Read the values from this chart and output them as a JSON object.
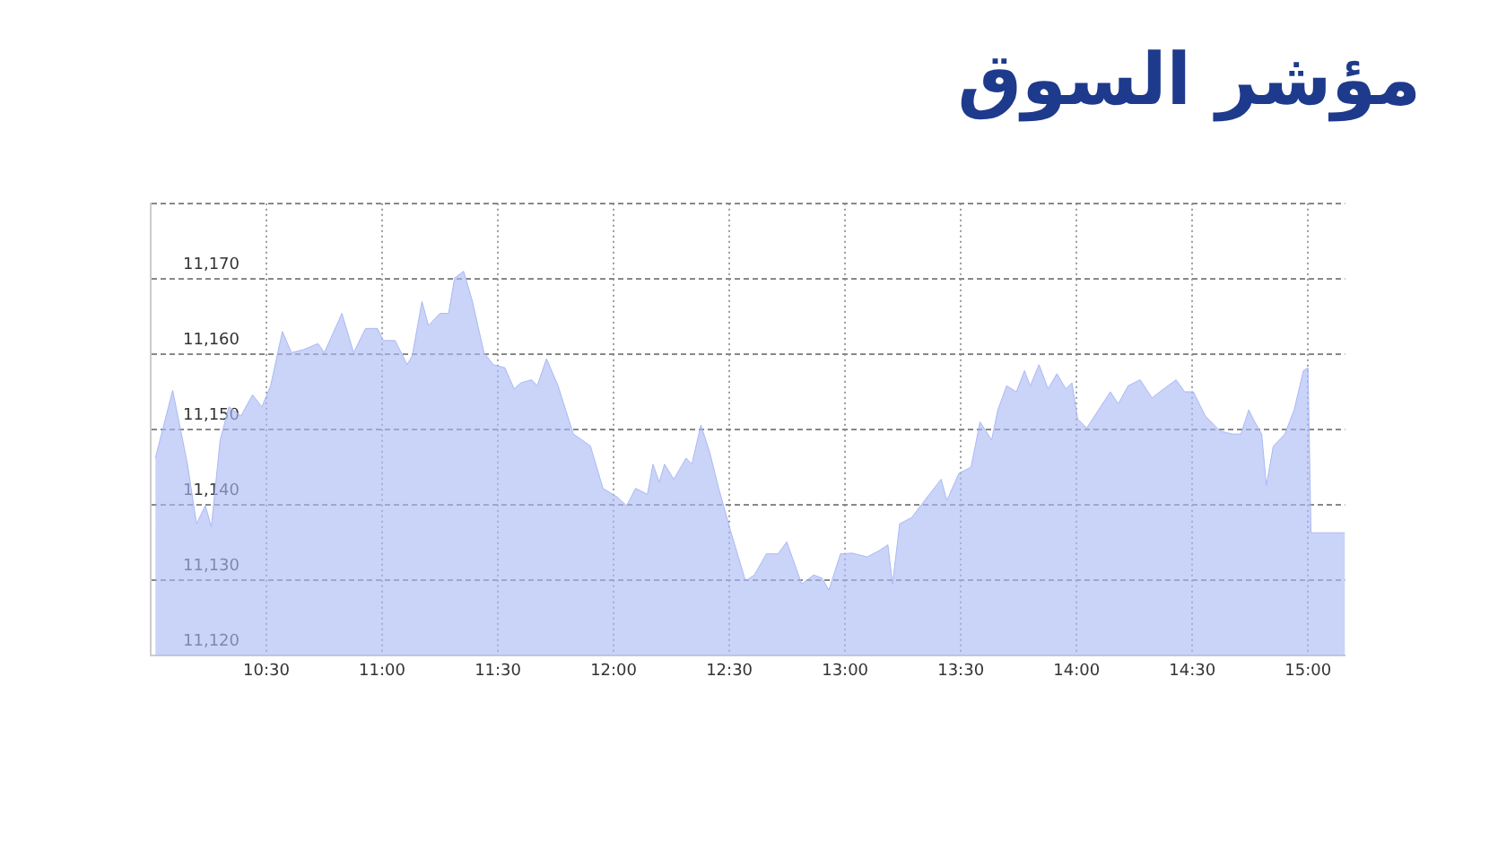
{
  "chart_data": {
    "type": "area",
    "title": "مؤشر السوق",
    "x": [
      10.02,
      10.095,
      10.159,
      10.198,
      10.236,
      10.262,
      10.3,
      10.338,
      10.39,
      10.44,
      10.48,
      10.518,
      10.569,
      10.608,
      10.66,
      10.723,
      10.75,
      10.826,
      10.877,
      10.928,
      10.98,
      11.005,
      11.056,
      11.108,
      11.13,
      11.172,
      11.2,
      11.25,
      11.287,
      11.313,
      11.352,
      11.39,
      11.44,
      11.48,
      11.53,
      11.57,
      11.6,
      11.646,
      11.67,
      11.71,
      11.76,
      11.826,
      11.864,
      11.9,
      11.954,
      12.018,
      12.056,
      12.095,
      12.146,
      12.17,
      12.197,
      12.22,
      12.26,
      12.313,
      12.338,
      12.377,
      12.415,
      12.454,
      12.505,
      12.54,
      12.57,
      12.608,
      12.66,
      12.71,
      12.748,
      12.813,
      12.864,
      12.9,
      12.93,
      12.98,
      13.03,
      13.095,
      13.146,
      13.185,
      13.205,
      13.236,
      13.287,
      13.364,
      13.415,
      13.44,
      13.492,
      13.544,
      13.583,
      13.633,
      13.66,
      13.698,
      13.74,
      13.775,
      13.8,
      13.838,
      13.877,
      13.915,
      13.954,
      13.98,
      14.005,
      14.044,
      14.095,
      14.146,
      14.18,
      14.223,
      14.275,
      14.326,
      14.377,
      14.43,
      14.467,
      14.505,
      14.556,
      14.62,
      14.672,
      14.71,
      14.744,
      14.77,
      14.8,
      14.82,
      14.85,
      14.9,
      14.94,
      14.98,
      15.0,
      15.013,
      15.16
    ],
    "series": [
      {
        "color": "#aab9f4",
        "values": [
          11146.2,
          11155.2,
          11145.4,
          11137.5,
          11139.9,
          11137.1,
          11148.6,
          11153,
          11151.8,
          11154.6,
          11153,
          11155.8,
          11163,
          11160.2,
          11160.6,
          11161.4,
          11160.2,
          11165.4,
          11160.2,
          11163.4,
          11163.4,
          11161.8,
          11161.8,
          11158.6,
          11159.8,
          11167,
          11163.8,
          11165.4,
          11165.4,
          11170.1,
          11171,
          11167,
          11160.2,
          11158.6,
          11158.2,
          11155.4,
          11156.2,
          11156.6,
          11155.8,
          11159.4,
          11155.8,
          11149.4,
          11148.6,
          11147.8,
          11142.2,
          11141,
          11139.9,
          11142.2,
          11141.4,
          11145.4,
          11143,
          11145.4,
          11143.4,
          11146.2,
          11145.4,
          11150.6,
          11147,
          11142.2,
          11136.6,
          11133,
          11129.9,
          11130.7,
          11133.5,
          11133.5,
          11135.1,
          11129.5,
          11130.7,
          11130.3,
          11128.7,
          11133.5,
          11133.6,
          11133.1,
          11133.9,
          11134.7,
          11129.5,
          11137.5,
          11138.3,
          11141.4,
          11143.4,
          11140.6,
          11144.2,
          11145,
          11151,
          11148.6,
          11152.6,
          11155.8,
          11155,
          11157.8,
          11155.8,
          11158.6,
          11155.4,
          11157.4,
          11155.4,
          11156.2,
          11151.4,
          11150.2,
          11152.6,
          11155,
          11153.4,
          11155.8,
          11156.6,
          11154.2,
          11155.4,
          11156.6,
          11155,
          11155,
          11151.8,
          11149.8,
          11149.4,
          11149.4,
          11152.6,
          11151,
          11149.4,
          11142.6,
          11147.8,
          11149.4,
          11152.6,
          11157.8,
          11158.2,
          11136.3,
          11136.3
        ]
      }
    ],
    "xlim": [
      10.0,
      15.16
    ],
    "xticks": [
      {
        "value": 10.5,
        "label": "10:30"
      },
      {
        "value": 11,
        "label": "11:00"
      },
      {
        "value": 11.5,
        "label": "11:30"
      },
      {
        "value": 12,
        "label": "12:00"
      },
      {
        "value": 12.5,
        "label": "12:30"
      },
      {
        "value": 13,
        "label": "13:00"
      },
      {
        "value": 13.5,
        "label": "13:30"
      },
      {
        "value": 14,
        "label": "14:00"
      },
      {
        "value": 14.5,
        "label": "14:30"
      },
      {
        "value": 15,
        "label": "15:00"
      }
    ],
    "ylim": [
      11120,
      11180
    ],
    "yticks": [
      {
        "value": 11120,
        "label": "11,120"
      },
      {
        "value": 11130,
        "label": "11,130"
      },
      {
        "value": 11140,
        "label": "11,140"
      },
      {
        "value": 11150,
        "label": "11,150"
      },
      {
        "value": 11160,
        "label": "11,160"
      },
      {
        "value": 11170,
        "label": "11,170"
      },
      {
        "value": 11180,
        "label": null
      }
    ],
    "grid": true,
    "marker": "none"
  }
}
